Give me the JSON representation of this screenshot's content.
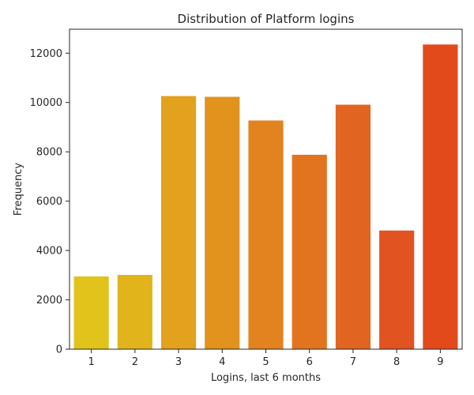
{
  "chart_data": {
    "type": "bar",
    "title": "Distribution of Platform logins",
    "xlabel": "Logins, last 6 months",
    "ylabel": "Frequency",
    "categories": [
      "1",
      "2",
      "3",
      "4",
      "5",
      "6",
      "7",
      "8",
      "9"
    ],
    "values": [
      2950,
      3010,
      10260,
      10230,
      9270,
      7880,
      9910,
      4810,
      12350
    ],
    "colors": [
      "#e1c31b",
      "#e1b41c",
      "#e2a21d",
      "#e1931e",
      "#e2831f",
      "#e27420",
      "#e26421",
      "#e25322",
      "#e24a1c"
    ],
    "ylim": [
      0,
      12969
    ],
    "yticks": [
      0,
      2000,
      4000,
      6000,
      8000,
      10000,
      12000
    ],
    "grid": false,
    "legend": "none"
  }
}
